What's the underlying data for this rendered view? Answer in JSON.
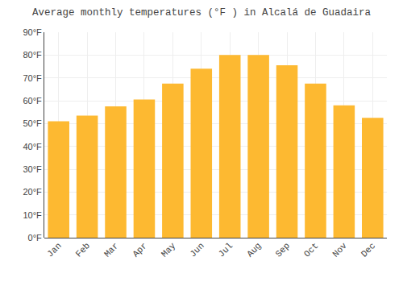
{
  "chart_data": {
    "type": "bar",
    "title": "Average monthly temperatures (°F ) in Alcalá de Guadaira",
    "categories": [
      "Jan",
      "Feb",
      "Mar",
      "Apr",
      "May",
      "Jun",
      "Jul",
      "Aug",
      "Sep",
      "Oct",
      "Nov",
      "Dec"
    ],
    "values": [
      51.0,
      53.5,
      57.5,
      60.5,
      67.5,
      74.0,
      80.0,
      80.0,
      75.5,
      67.5,
      58.0,
      52.5
    ],
    "color": "#FDB931",
    "ylim": [
      0,
      90
    ],
    "yticks": [
      {
        "value": 0,
        "label": "0°F"
      },
      {
        "value": 10,
        "label": "10°F"
      },
      {
        "value": 20,
        "label": "20°F"
      },
      {
        "value": 30,
        "label": "30°F"
      },
      {
        "value": 40,
        "label": "40°F"
      },
      {
        "value": 50,
        "label": "50°F"
      },
      {
        "value": 60,
        "label": "60°F"
      },
      {
        "value": 70,
        "label": "70°F"
      },
      {
        "value": 80,
        "label": "80°F"
      },
      {
        "value": 90,
        "label": "90°F"
      }
    ],
    "grid": true
  }
}
